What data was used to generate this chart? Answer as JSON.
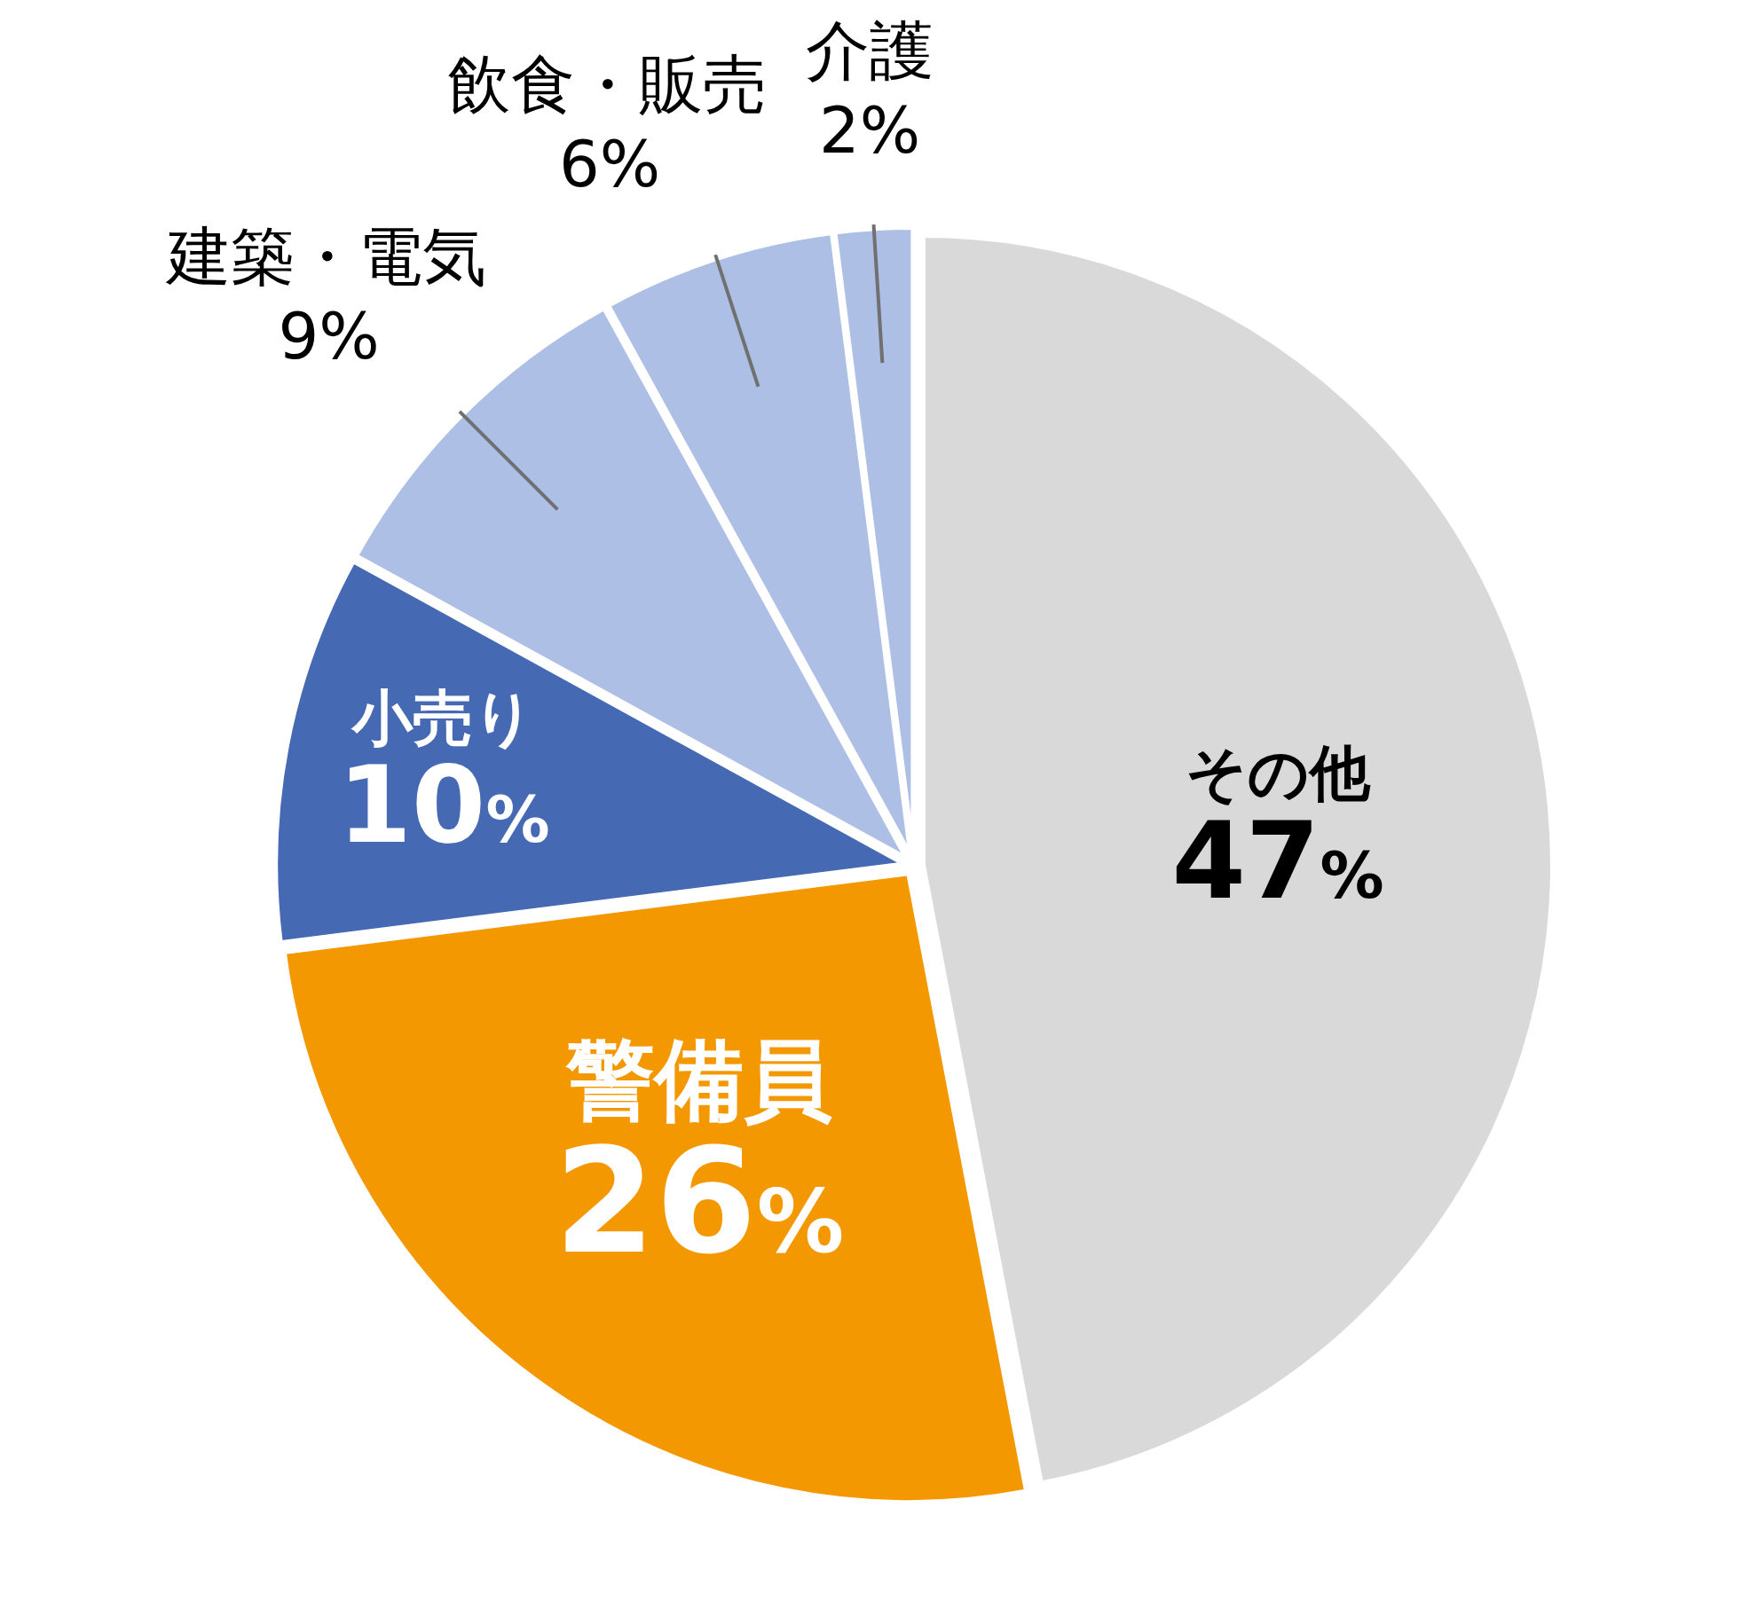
{
  "chart_data": {
    "type": "pie",
    "categories": [
      "その他",
      "警備員",
      "小売り",
      "建築・電気",
      "飲食・販売",
      "介護"
    ],
    "values": [
      47,
      26,
      10,
      9,
      6,
      2
    ],
    "value_labels": [
      "47%",
      "26%",
      "10%",
      "9%",
      "6%",
      "2%"
    ],
    "colors": [
      "#d9d9d9",
      "#f39800",
      "#4569b2",
      "#adbfe5",
      "#adbfe5",
      "#adbfe5"
    ],
    "legend": false
  }
}
